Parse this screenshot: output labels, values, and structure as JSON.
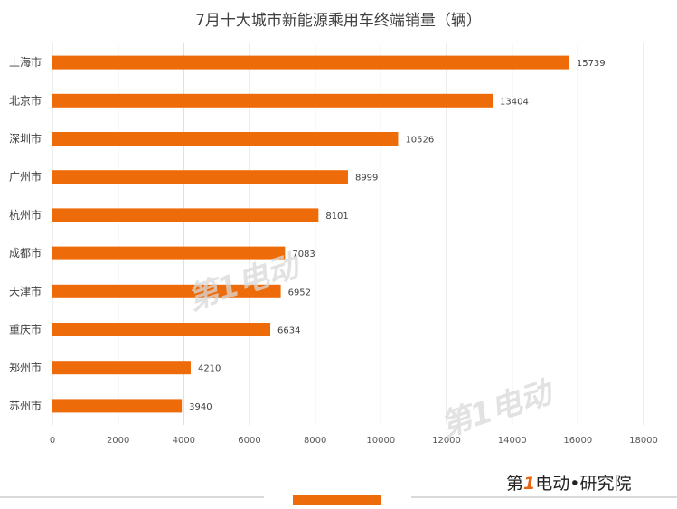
{
  "chart_data": {
    "type": "bar",
    "orientation": "horizontal",
    "title": "7月十大城市新能源乘用车终端销量（辆）",
    "categories": [
      "上海市",
      "北京市",
      "深圳市",
      "广州市",
      "杭州市",
      "成都市",
      "天津市",
      "重庆市",
      "郑州市",
      "苏州市"
    ],
    "values": [
      15739,
      13404,
      10526,
      8999,
      8101,
      7083,
      6952,
      6634,
      4210,
      3940
    ],
    "xlim": [
      0,
      18000
    ],
    "xticks": [
      0,
      2000,
      4000,
      6000,
      8000,
      10000,
      12000,
      14000,
      16000,
      18000
    ],
    "grid": true,
    "bar_color": "#ee6b0a"
  },
  "watermark": {
    "text": "第1电动"
  },
  "footer": {
    "logo_text_a": "第",
    "logo_text_b": "1",
    "logo_text_c": "电动",
    "logo_suffix": "•研究院"
  }
}
